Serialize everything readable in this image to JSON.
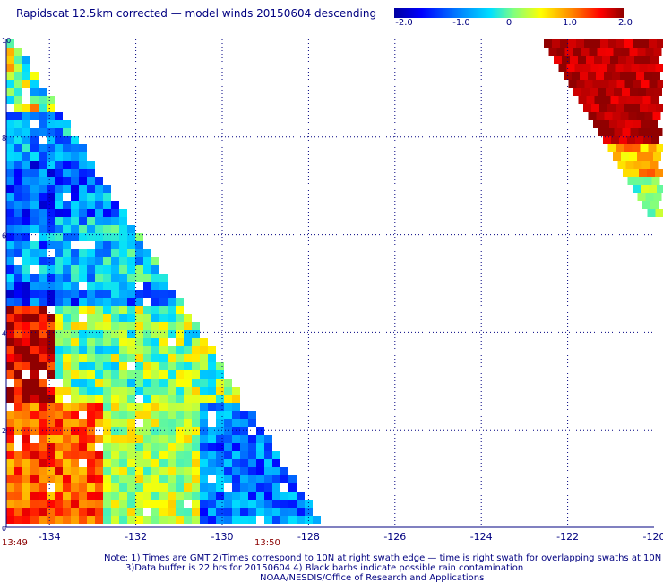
{
  "title": "Rapidscat 12.5km corrected — model winds 20150604 descending",
  "colorbar": {
    "labels": [
      "-2.0",
      "-1.0",
      "0",
      "1.0",
      "2.0"
    ],
    "min": -2.0,
    "max": 2.0
  },
  "chart_data": {
    "type": "heatmap",
    "x_ticks": [
      "-134",
      "-132",
      "-130",
      "-128",
      "-126",
      "-124",
      "-122",
      "-120"
    ],
    "y_ticks": [
      "0",
      "2",
      "4",
      "6",
      "8",
      "10"
    ],
    "xlim": [
      -135,
      -120
    ],
    "ylim": [
      0,
      10
    ],
    "value_range": [
      -2.0,
      2.0
    ]
  },
  "times": {
    "left": "13:49",
    "right": "13:50"
  },
  "notes": {
    "line1": "Note: 1) Times are GMT 2)Times correspond to 10N at right swath edge — time is right swath for overlapping swaths at 10N",
    "line2": "3)Data buffer is 22 hrs for 20150604 4) Black barbs indicate possible rain contamination",
    "line3": "NOAA/NESDIS/Office of Research and Applications"
  }
}
